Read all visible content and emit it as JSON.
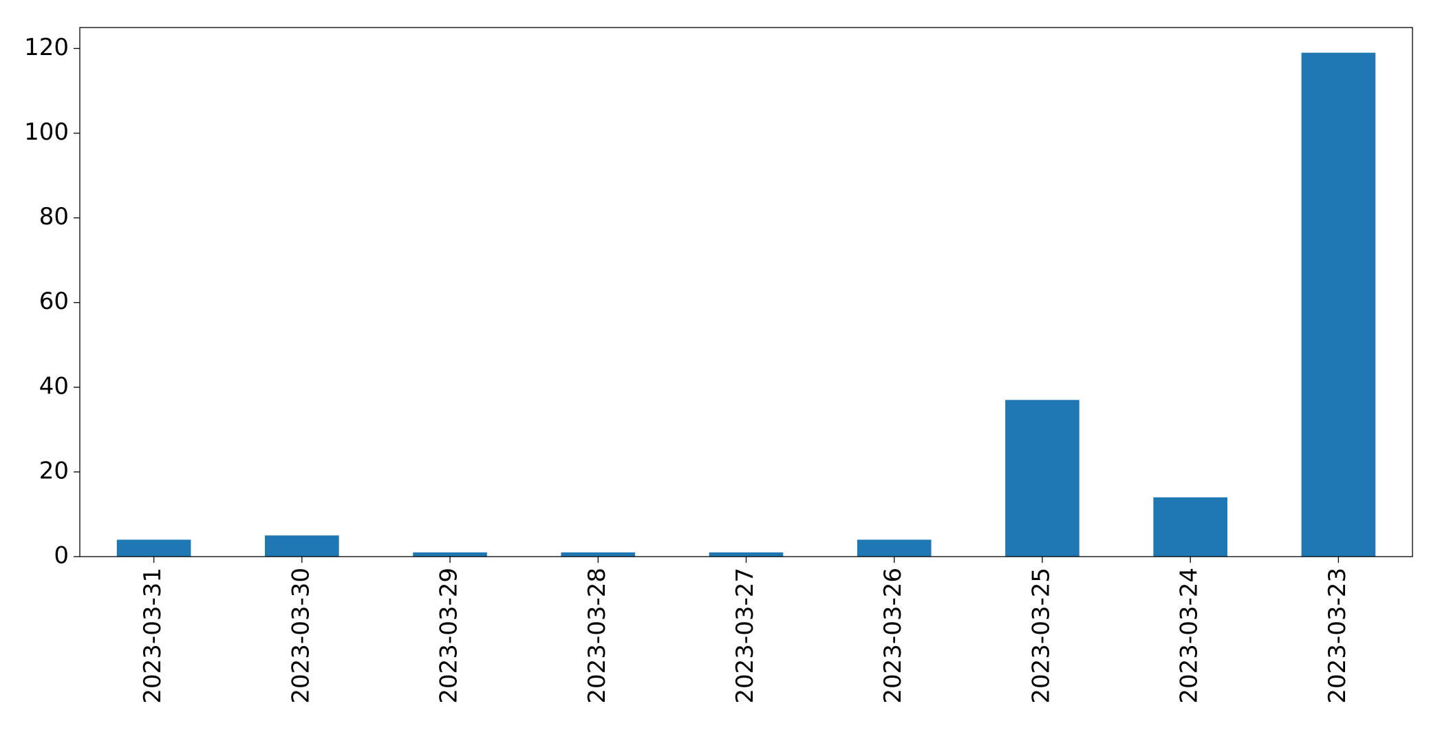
{
  "chart_data": {
    "type": "bar",
    "categories": [
      "2023-03-31",
      "2023-03-30",
      "2023-03-29",
      "2023-03-28",
      "2023-03-27",
      "2023-03-26",
      "2023-03-25",
      "2023-03-24",
      "2023-03-23"
    ],
    "values": [
      4,
      5,
      1,
      1,
      1,
      4,
      37,
      14,
      119
    ],
    "color": "#1f77b4",
    "ylim": [
      0,
      124.95
    ],
    "yticks": [
      0,
      20,
      40,
      60,
      80,
      100,
      120
    ],
    "grid": false
  }
}
